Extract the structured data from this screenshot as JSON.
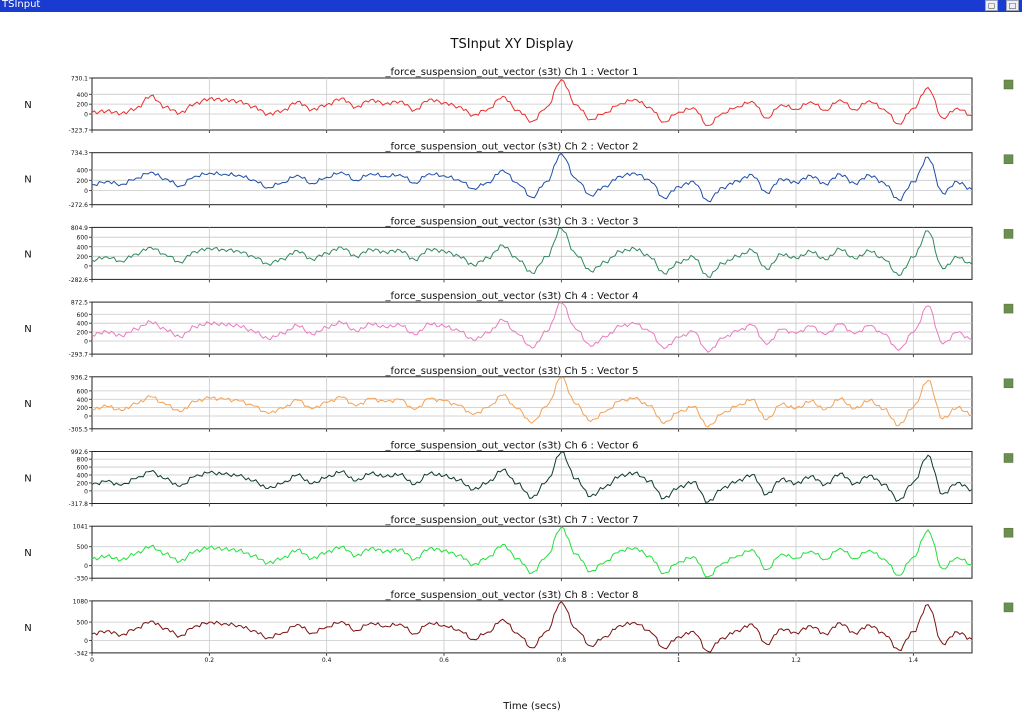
{
  "window": {
    "title": "TSInput"
  },
  "chart_data": {
    "type": "line",
    "title": "TSInput XY Display",
    "xlabel": "Time (secs)",
    "xlim": [
      0,
      1.5
    ],
    "x_ticks": [
      "0",
      "0.2",
      "0.4",
      "0.6",
      "0.8",
      "1",
      "1.2",
      "1.4"
    ],
    "grid": true,
    "legend": "right markers",
    "x": [
      0,
      0.025,
      0.05,
      0.075,
      0.1,
      0.125,
      0.15,
      0.175,
      0.2,
      0.225,
      0.25,
      0.275,
      0.3,
      0.325,
      0.35,
      0.375,
      0.4,
      0.425,
      0.45,
      0.475,
      0.5,
      0.525,
      0.55,
      0.575,
      0.6,
      0.625,
      0.65,
      0.675,
      0.7,
      0.725,
      0.75,
      0.775,
      0.8,
      0.825,
      0.85,
      0.875,
      0.9,
      0.925,
      0.95,
      0.975,
      1,
      1.025,
      1.05,
      1.075,
      1.1,
      1.125,
      1.15,
      1.175,
      1.2,
      1.225,
      1.25,
      1.275,
      1.3,
      1.325,
      1.35,
      1.375,
      1.4,
      1.425,
      1.45,
      1.475,
      1.5
    ],
    "base_shape": [
      0.05,
      0.1,
      0.02,
      0.2,
      0.6,
      0.25,
      0.05,
      0.4,
      0.6,
      0.55,
      0.5,
      0.3,
      0.05,
      0.15,
      0.45,
      0.2,
      0.35,
      0.6,
      0.3,
      0.55,
      0.4,
      0.5,
      0.2,
      0.6,
      0.45,
      0.3,
      -0.05,
      0.2,
      0.7,
      0.2,
      -0.2,
      0.25,
      1.0,
      0.35,
      -0.15,
      0.1,
      0.45,
      0.6,
      0.3,
      -0.2,
      0.1,
      0.25,
      -0.3,
      0.05,
      0.3,
      0.55,
      -0.1,
      0.4,
      0.2,
      0.5,
      0.2,
      0.6,
      0.2,
      0.55,
      0.2,
      -0.3,
      0.3,
      0.85,
      -0.1,
      0.3,
      0.05
    ],
    "series": [
      {
        "name": "_force_suspension_out_vector (s3t)  Ch 1 : Vector 1",
        "unit": "N",
        "color": "#e8302e",
        "ylim": [
          -323.7,
          730.1
        ],
        "y_ticks": [
          "730.1",
          "400",
          "200",
          "0",
          "-323.7"
        ],
        "y_tick_values": [
          730.1,
          400,
          200,
          0,
          -323.7
        ],
        "values": [
          30,
          60,
          10,
          110,
          370,
          140,
          20,
          210,
          310,
          290,
          260,
          150,
          0,
          70,
          250,
          90,
          190,
          320,
          140,
          290,
          210,
          260,
          80,
          300,
          230,
          150,
          -20,
          100,
          360,
          80,
          -150,
          140,
          700,
          190,
          -110,
          30,
          210,
          300,
          140,
          -160,
          40,
          130,
          -230,
          20,
          150,
          260,
          -80,
          190,
          100,
          250,
          80,
          290,
          90,
          270,
          100,
          -200,
          120,
          540,
          -80,
          120,
          -30
        ]
      },
      {
        "name": "_force_suspension_out_vector (s3t)  Ch 2 : Vector 2",
        "unit": "N",
        "color": "#1d4ea8",
        "ylim": [
          -272.6,
          734.3
        ],
        "y_ticks": [
          "734.3",
          "400",
          "200",
          "0",
          "-272.6"
        ],
        "y_tick_values": [
          734.3,
          400,
          200,
          0,
          -272.6
        ],
        "values": [
          110,
          180,
          120,
          240,
          360,
          230,
          90,
          280,
          340,
          320,
          300,
          210,
          60,
          160,
          300,
          140,
          260,
          360,
          200,
          330,
          280,
          310,
          150,
          330,
          290,
          210,
          40,
          160,
          400,
          150,
          -130,
          180,
          720,
          230,
          -90,
          90,
          280,
          340,
          210,
          -140,
          80,
          180,
          -200,
          60,
          190,
          310,
          -40,
          230,
          160,
          290,
          130,
          320,
          140,
          300,
          150,
          -180,
          170,
          650,
          -50,
          170,
          20
        ]
      },
      {
        "name": "_force_suspension_out_vector (s3t)  Ch 3 : Vector 3",
        "unit": "N",
        "color": "#2f8a5c",
        "ylim": [
          -282.6,
          804.9
        ],
        "y_ticks": [
          "804.9",
          "600",
          "400",
          "200",
          "0",
          "-282.6"
        ],
        "y_tick_values": [
          804.9,
          600,
          400,
          200,
          0,
          -282.6
        ],
        "values": [
          120,
          190,
          100,
          250,
          390,
          240,
          80,
          300,
          370,
          340,
          310,
          200,
          40,
          150,
          320,
          140,
          270,
          390,
          200,
          350,
          290,
          330,
          130,
          350,
          310,
          210,
          20,
          170,
          430,
          150,
          -150,
          190,
          790,
          240,
          -110,
          80,
          300,
          360,
          200,
          -160,
          70,
          190,
          -230,
          50,
          200,
          330,
          -70,
          240,
          160,
          300,
          130,
          350,
          150,
          310,
          140,
          -200,
          180,
          730,
          -60,
          180,
          30
        ]
      },
      {
        "name": "_force_suspension_out_vector (s3t)  Ch 4 : Vector 4",
        "unit": "N",
        "color": "#e87cc0",
        "ylim": [
          -293.7,
          872.5
        ],
        "y_ticks": [
          "872.5",
          "600",
          "400",
          "200",
          "0",
          "-293.7"
        ],
        "y_tick_values": [
          872.5,
          600,
          400,
          200,
          0,
          -293.7
        ],
        "values": [
          140,
          210,
          120,
          270,
          430,
          260,
          90,
          320,
          400,
          370,
          340,
          220,
          50,
          170,
          350,
          150,
          300,
          420,
          220,
          380,
          310,
          360,
          140,
          380,
          330,
          230,
          20,
          180,
          470,
          160,
          -160,
          210,
          860,
          260,
          -120,
          90,
          330,
          390,
          220,
          -170,
          80,
          210,
          -250,
          60,
          220,
          360,
          -80,
          260,
          170,
          330,
          140,
          380,
          160,
          340,
          150,
          -210,
          190,
          790,
          -70,
          190,
          30
        ]
      },
      {
        "name": "_force_suspension_out_vector (s3t)  Ch 5 : Vector 5",
        "unit": "N",
        "color": "#f3a255",
        "ylim": [
          -305.5,
          936.2
        ],
        "y_ticks": [
          "936.2",
          "600",
          "400",
          "200",
          "0",
          "-305.5"
        ],
        "y_tick_values": [
          936.2,
          600,
          400,
          200,
          0,
          -305.5
        ],
        "values": [
          150,
          230,
          130,
          290,
          460,
          280,
          100,
          340,
          430,
          400,
          360,
          240,
          60,
          180,
          380,
          170,
          320,
          450,
          240,
          410,
          340,
          390,
          150,
          410,
          360,
          250,
          30,
          200,
          500,
          170,
          -170,
          230,
          920,
          280,
          -130,
          100,
          360,
          420,
          240,
          -180,
          90,
          220,
          -260,
          60,
          240,
          390,
          -90,
          280,
          180,
          350,
          150,
          410,
          170,
          370,
          160,
          -230,
          210,
          850,
          -70,
          200,
          30
        ]
      },
      {
        "name": "_force_suspension_out_vector (s3t)  Ch 6 : Vector 6",
        "unit": "N",
        "color": "#0d3b2e",
        "ylim": [
          -317.8,
          992.6
        ],
        "y_ticks": [
          "992.6",
          "800",
          "600",
          "400",
          "200",
          "0",
          "-317.8"
        ],
        "y_tick_values": [
          992.6,
          800,
          600,
          400,
          200,
          0,
          -317.8
        ],
        "values": [
          160,
          240,
          140,
          310,
          490,
          300,
          110,
          360,
          460,
          420,
          380,
          250,
          60,
          190,
          400,
          180,
          340,
          480,
          250,
          440,
          360,
          410,
          160,
          440,
          380,
          270,
          30,
          210,
          530,
          180,
          -180,
          240,
          980,
          300,
          -140,
          100,
          380,
          450,
          250,
          -190,
          90,
          230,
          -280,
          70,
          250,
          410,
          -90,
          300,
          190,
          370,
          160,
          440,
          180,
          390,
          170,
          -240,
          220,
          900,
          -80,
          210,
          30
        ]
      },
      {
        "name": "_force_suspension_out_vector (s3t)  Ch 7 : Vector 7",
        "unit": "N",
        "color": "#22e03c",
        "ylim": [
          -330,
          1041
        ],
        "y_ticks": [
          "1041",
          "500",
          "0",
          "-330"
        ],
        "y_tick_values": [
          1041,
          500,
          0,
          -330
        ],
        "values": [
          170,
          250,
          150,
          320,
          510,
          310,
          110,
          380,
          480,
          440,
          400,
          260,
          70,
          200,
          420,
          190,
          360,
          500,
          260,
          460,
          380,
          430,
          170,
          460,
          400,
          280,
          30,
          220,
          560,
          190,
          -190,
          250,
          1020,
          310,
          -150,
          110,
          400,
          470,
          260,
          -200,
          100,
          240,
          -290,
          70,
          260,
          430,
          -100,
          310,
          200,
          390,
          170,
          460,
          190,
          410,
          180,
          -250,
          230,
          940,
          -80,
          220,
          30
        ]
      },
      {
        "name": "_force_suspension_out_vector (s3t)  Ch 8 : Vector 8",
        "unit": "N",
        "color": "#7a1010",
        "ylim": [
          -342,
          1080
        ],
        "y_ticks": [
          "1080",
          "500",
          "0",
          "-342"
        ],
        "y_tick_values": [
          1080,
          500,
          0,
          -342
        ],
        "values": [
          180,
          260,
          150,
          330,
          530,
          330,
          120,
          390,
          500,
          460,
          410,
          270,
          70,
          210,
          440,
          200,
          370,
          520,
          270,
          480,
          390,
          450,
          180,
          480,
          410,
          290,
          30,
          230,
          580,
          200,
          -200,
          260,
          1060,
          320,
          -150,
          110,
          410,
          490,
          270,
          -210,
          100,
          250,
          -300,
          70,
          270,
          450,
          -100,
          320,
          210,
          400,
          180,
          480,
          200,
          420,
          190,
          -260,
          240,
          980,
          -90,
          230,
          30
        ]
      }
    ]
  }
}
